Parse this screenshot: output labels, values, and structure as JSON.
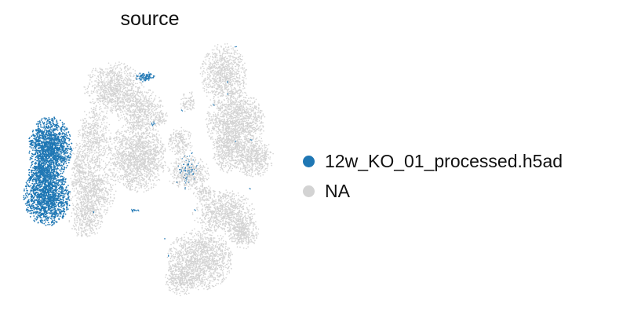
{
  "chart_data": {
    "type": "scatter",
    "title": "source",
    "xlabel": "",
    "ylabel": "",
    "axes_visible": false,
    "legend_position": "right",
    "legend": [
      {
        "label": "12w_KO_01_processed.h5ad",
        "color": "#1f77b4"
      },
      {
        "label": "NA",
        "color": "#d3d3d3"
      }
    ],
    "series": [
      {
        "name": "NA",
        "color": "#d3d3d3",
        "role": "background cells (all other samples)"
      },
      {
        "name": "12w_KO_01_processed.h5ad",
        "color": "#1f77b4",
        "role": "highlighted sample, concentrated in the left-most cluster"
      }
    ]
  }
}
